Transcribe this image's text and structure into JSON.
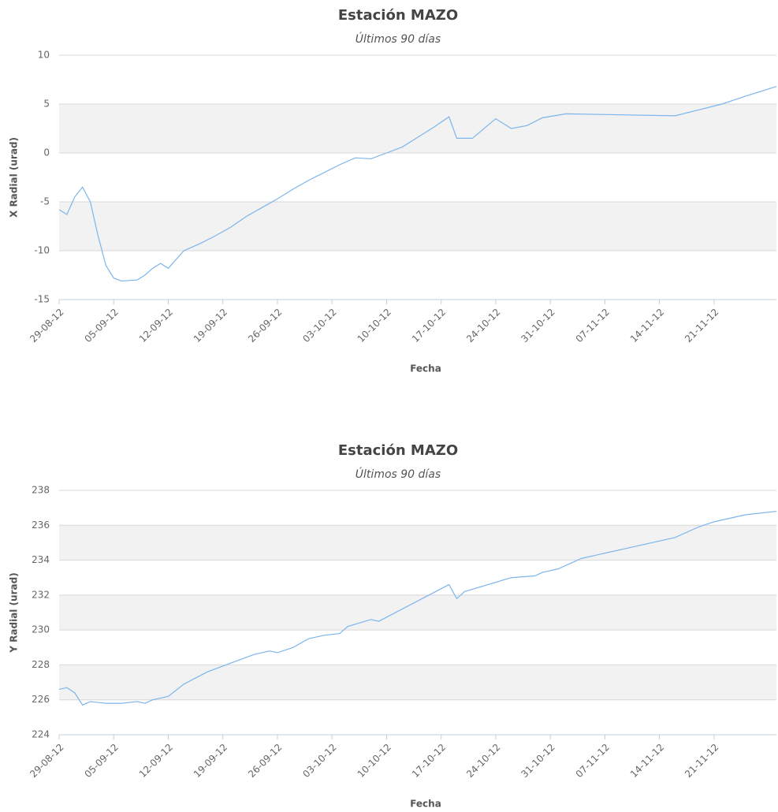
{
  "chart_data": [
    {
      "type": "line",
      "title": "Estación MAZO",
      "subtitle": "Últimos 90 días",
      "x_label": "Fecha",
      "y_label": "X Radial (urad)",
      "x": [
        "2012-08-29",
        "2012-08-30",
        "2012-08-31",
        "2012-09-01",
        "2012-09-02",
        "2012-09-03",
        "2012-09-04",
        "2012-09-05",
        "2012-09-06",
        "2012-09-08",
        "2012-09-09",
        "2012-09-10",
        "2012-09-11",
        "2012-09-12",
        "2012-09-14",
        "2012-09-16",
        "2012-09-18",
        "2012-09-20",
        "2012-09-22",
        "2012-09-24",
        "2012-09-26",
        "2012-09-28",
        "2012-09-30",
        "2012-10-02",
        "2012-10-04",
        "2012-10-06",
        "2012-10-08",
        "2012-10-10",
        "2012-10-12",
        "2012-10-14",
        "2012-10-16",
        "2012-10-18",
        "2012-10-19",
        "2012-10-21",
        "2012-10-24",
        "2012-10-26",
        "2012-10-28",
        "2012-10-30",
        "2012-11-02",
        "2012-11-16",
        "2012-11-19",
        "2012-11-22",
        "2012-11-25",
        "2012-11-29"
      ],
      "values": [
        -5.8,
        -6.3,
        -4.5,
        -3.5,
        -5,
        -8.5,
        -11.5,
        -12.8,
        -13.1,
        -13,
        -12.5,
        -11.8,
        -11.3,
        -11.8,
        -10,
        -9.3,
        -8.5,
        -7.6,
        -6.5,
        -5.6,
        -4.7,
        -3.7,
        -2.8,
        -2,
        -1.2,
        -0.5,
        -0.6,
        0,
        0.6,
        1.6,
        2.6,
        3.7,
        1.5,
        1.5,
        3.5,
        2.5,
        2.8,
        3.6,
        4,
        3.8,
        4.4,
        5,
        5.8,
        6.8
      ],
      "color": "#7cb5ec",
      "xlim": [
        "2012-08-29",
        "2012-11-29"
      ],
      "xticks": [
        {
          "value": "2012-08-29",
          "label": "29-08-12"
        },
        {
          "value": "2012-09-05",
          "label": "05-09-12"
        },
        {
          "value": "2012-09-12",
          "label": "12-09-12"
        },
        {
          "value": "2012-09-19",
          "label": "19-09-12"
        },
        {
          "value": "2012-09-26",
          "label": "26-09-12"
        },
        {
          "value": "2012-10-03",
          "label": "03-10-12"
        },
        {
          "value": "2012-10-10",
          "label": "10-10-12"
        },
        {
          "value": "2012-10-17",
          "label": "17-10-12"
        },
        {
          "value": "2012-10-24",
          "label": "24-10-12"
        },
        {
          "value": "2012-10-31",
          "label": "31-10-12"
        },
        {
          "value": "2012-11-07",
          "label": "07-11-12"
        },
        {
          "value": "2012-11-14",
          "label": "14-11-12"
        },
        {
          "value": "2012-11-21",
          "label": "21-11-12"
        }
      ],
      "ylim": [
        -15,
        10
      ],
      "yticks": [
        -15,
        -10,
        -5,
        0,
        5,
        10
      ],
      "grid": true,
      "alternate_bands": true,
      "band_color": "#f2f2f2"
    },
    {
      "type": "line",
      "title": "Estación MAZO",
      "subtitle": "Últimos 90 días",
      "x_label": "Fecha",
      "y_label": "Y Radial (urad)",
      "x": [
        "2012-08-29",
        "2012-08-30",
        "2012-08-31",
        "2012-09-01",
        "2012-09-02",
        "2012-09-04",
        "2012-09-06",
        "2012-09-08",
        "2012-09-09",
        "2012-09-10",
        "2012-09-12",
        "2012-09-14",
        "2012-09-17",
        "2012-09-20",
        "2012-09-23",
        "2012-09-25",
        "2012-09-26",
        "2012-09-28",
        "2012-09-30",
        "2012-10-02",
        "2012-10-04",
        "2012-10-05",
        "2012-10-08",
        "2012-10-09",
        "2012-10-12",
        "2012-10-15",
        "2012-10-18",
        "2012-10-19",
        "2012-10-20",
        "2012-10-26",
        "2012-10-29",
        "2012-10-30",
        "2012-11-01",
        "2012-11-04",
        "2012-11-10",
        "2012-11-16",
        "2012-11-19",
        "2012-11-21",
        "2012-11-25",
        "2012-11-29"
      ],
      "values": [
        226.6,
        226.7,
        226.4,
        225.7,
        225.9,
        225.8,
        225.8,
        225.9,
        225.8,
        226,
        226.2,
        226.9,
        227.6,
        228.1,
        228.6,
        228.8,
        228.7,
        229,
        229.5,
        229.7,
        229.8,
        230.2,
        230.6,
        230.5,
        231.2,
        231.9,
        232.6,
        231.8,
        232.2,
        233,
        233.1,
        233.3,
        233.5,
        234.1,
        234.7,
        235.3,
        235.9,
        236.2,
        236.6,
        236.8
      ],
      "color": "#7cb5ec",
      "xlim": [
        "2012-08-29",
        "2012-11-29"
      ],
      "xticks": [
        {
          "value": "2012-08-29",
          "label": "29-08-12"
        },
        {
          "value": "2012-09-05",
          "label": "05-09-12"
        },
        {
          "value": "2012-09-12",
          "label": "12-09-12"
        },
        {
          "value": "2012-09-19",
          "label": "19-09-12"
        },
        {
          "value": "2012-09-26",
          "label": "26-09-12"
        },
        {
          "value": "2012-10-03",
          "label": "03-10-12"
        },
        {
          "value": "2012-10-10",
          "label": "10-10-12"
        },
        {
          "value": "2012-10-17",
          "label": "17-10-12"
        },
        {
          "value": "2012-10-24",
          "label": "24-10-12"
        },
        {
          "value": "2012-10-31",
          "label": "31-10-12"
        },
        {
          "value": "2012-11-07",
          "label": "07-11-12"
        },
        {
          "value": "2012-11-14",
          "label": "14-11-12"
        },
        {
          "value": "2012-11-21",
          "label": "21-11-12"
        }
      ],
      "ylim": [
        224,
        238
      ],
      "yticks": [
        224,
        226,
        228,
        230,
        232,
        234,
        236,
        238
      ],
      "grid": true,
      "alternate_bands": true,
      "band_color": "#f2f2f2"
    }
  ]
}
